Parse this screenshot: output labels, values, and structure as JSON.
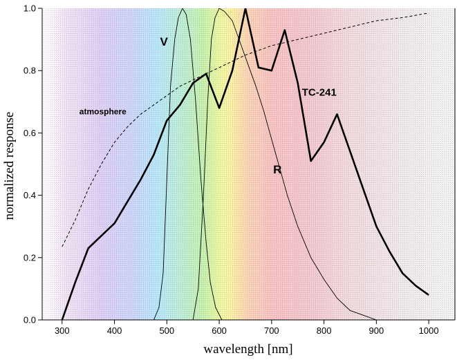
{
  "chart_data": {
    "type": "line",
    "xlabel": "wavelength [nm]",
    "ylabel": "normalized response",
    "xlim": [
      262,
      1050
    ],
    "ylim": [
      0,
      1.0
    ],
    "x_ticks": [
      300,
      400,
      500,
      600,
      700,
      800,
      900,
      1000
    ],
    "y_ticks": [
      0.0,
      0.2,
      0.4,
      0.6,
      0.8,
      1.0
    ],
    "grid": false,
    "background": "visible-spectrum color gradient from violet (≈300 nm) to red (≈750 nm)",
    "series": [
      {
        "name": "V",
        "style": "thin-solid",
        "label_at": [
          487,
          0.88
        ],
        "points": [
          [
            475,
            0.0
          ],
          [
            485,
            0.04
          ],
          [
            493,
            0.15
          ],
          [
            500,
            0.45
          ],
          [
            507,
            0.75
          ],
          [
            515,
            0.9
          ],
          [
            522,
            0.97
          ],
          [
            530,
            1.0
          ],
          [
            537,
            0.98
          ],
          [
            545,
            0.9
          ],
          [
            555,
            0.7
          ],
          [
            565,
            0.45
          ],
          [
            575,
            0.25
          ],
          [
            583,
            0.12
          ],
          [
            593,
            0.04
          ],
          [
            605,
            0.0
          ]
        ]
      },
      {
        "name": "R",
        "style": "thin-solid",
        "label_at": [
          703,
          0.47
        ],
        "points": [
          [
            550,
            0.0
          ],
          [
            560,
            0.1
          ],
          [
            570,
            0.4
          ],
          [
            578,
            0.7
          ],
          [
            585,
            0.9
          ],
          [
            592,
            0.97
          ],
          [
            600,
            1.0
          ],
          [
            610,
            0.99
          ],
          [
            625,
            0.96
          ],
          [
            640,
            0.89
          ],
          [
            655,
            0.82
          ],
          [
            670,
            0.75
          ],
          [
            685,
            0.67
          ],
          [
            700,
            0.58
          ],
          [
            715,
            0.49
          ],
          [
            730,
            0.4
          ],
          [
            750,
            0.3
          ],
          [
            775,
            0.2
          ],
          [
            800,
            0.13
          ],
          [
            825,
            0.07
          ],
          [
            850,
            0.03
          ],
          [
            875,
            0.015
          ],
          [
            900,
            0.0
          ]
        ]
      },
      {
        "name": "TC-241",
        "style": "thick-solid",
        "label_at": [
          758,
          0.72
        ],
        "points": [
          [
            300,
            0.0
          ],
          [
            325,
            0.12
          ],
          [
            350,
            0.23
          ],
          [
            375,
            0.27
          ],
          [
            400,
            0.31
          ],
          [
            425,
            0.38
          ],
          [
            450,
            0.45
          ],
          [
            475,
            0.53
          ],
          [
            500,
            0.64
          ],
          [
            525,
            0.69
          ],
          [
            550,
            0.76
          ],
          [
            575,
            0.79
          ],
          [
            600,
            0.68
          ],
          [
            625,
            0.8
          ],
          [
            650,
            1.0
          ],
          [
            675,
            0.81
          ],
          [
            700,
            0.8
          ],
          [
            725,
            0.93
          ],
          [
            750,
            0.76
          ],
          [
            775,
            0.51
          ],
          [
            800,
            0.57
          ],
          [
            825,
            0.66
          ],
          [
            850,
            0.54
          ],
          [
            875,
            0.42
          ],
          [
            900,
            0.3
          ],
          [
            925,
            0.22
          ],
          [
            950,
            0.15
          ],
          [
            975,
            0.11
          ],
          [
            1000,
            0.08
          ]
        ]
      },
      {
        "name": "atmosphere",
        "style": "dashed",
        "label_at": [
          333,
          0.66
        ],
        "points": [
          [
            300,
            0.235
          ],
          [
            325,
            0.32
          ],
          [
            350,
            0.42
          ],
          [
            375,
            0.5
          ],
          [
            400,
            0.57
          ],
          [
            425,
            0.62
          ],
          [
            450,
            0.66
          ],
          [
            475,
            0.69
          ],
          [
            500,
            0.72
          ],
          [
            525,
            0.75
          ],
          [
            550,
            0.77
          ],
          [
            575,
            0.79
          ],
          [
            600,
            0.81
          ],
          [
            650,
            0.85
          ],
          [
            700,
            0.88
          ],
          [
            750,
            0.9
          ],
          [
            800,
            0.92
          ],
          [
            850,
            0.94
          ],
          [
            900,
            0.96
          ],
          [
            950,
            0.97
          ],
          [
            1000,
            0.985
          ]
        ]
      }
    ]
  }
}
